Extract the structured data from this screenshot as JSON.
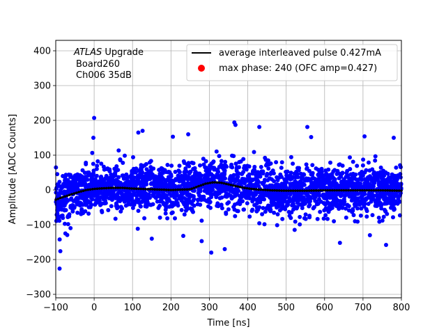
{
  "chart_data": {
    "type": "scatter",
    "xlabel": "Time [ns]",
    "ylabel": "Amplitude [ADC Counts]",
    "xlim": [
      -100,
      800
    ],
    "ylim": [
      -310,
      430
    ],
    "grid": true,
    "x_ticks": [
      -100,
      0,
      100,
      200,
      300,
      400,
      500,
      600,
      700,
      800
    ],
    "y_ticks": [
      -300,
      -200,
      -100,
      0,
      100,
      200,
      300,
      400
    ],
    "annotation": {
      "line1_italic": "ATLAS",
      "line1_rest": " Upgrade",
      "line2": "Board260",
      "line3": "Ch006 35dB"
    },
    "legend": {
      "position": "top-right",
      "entries": [
        {
          "label": "average interleaved pulse 0.427mA",
          "color": "#000000",
          "marker": "line"
        },
        {
          "label": "max phase: 240 (OFC amp=0.427)",
          "color": "#ff0000",
          "marker": "dot"
        }
      ]
    },
    "series": [
      {
        "role": "samples",
        "color": "#0000ff",
        "marker": "dot",
        "x_range": [
          -100,
          800
        ],
        "outliers": [
          {
            "x": -90,
            "y": -226
          },
          {
            "x": -88,
            "y": -176
          },
          {
            "x": 0,
            "y": 207
          },
          {
            "x": -2,
            "y": 150
          },
          {
            "x": 365,
            "y": 194
          },
          {
            "x": 368,
            "y": 187
          },
          {
            "x": 430,
            "y": 181
          },
          {
            "x": 555,
            "y": 181
          },
          {
            "x": 126,
            "y": 170
          },
          {
            "x": 115,
            "y": 165
          },
          {
            "x": 305,
            "y": -180
          },
          {
            "x": 640,
            "y": -152
          },
          {
            "x": 760,
            "y": -158
          },
          {
            "x": 718,
            "y": -130
          },
          {
            "x": 340,
            "y": -170
          },
          {
            "x": 232,
            "y": -132
          },
          {
            "x": 280,
            "y": -147
          },
          {
            "x": 704,
            "y": 154
          },
          {
            "x": 780,
            "y": 150
          },
          {
            "x": 565,
            "y": 152
          },
          {
            "x": 245,
            "y": 160
          },
          {
            "x": 205,
            "y": 153
          },
          {
            "x": -75,
            "y": -125
          },
          {
            "x": 150,
            "y": -140
          }
        ]
      },
      {
        "role": "average",
        "name": "average interleaved pulse 0.427mA",
        "color": "#000000",
        "x": [
          -100,
          -80,
          -60,
          -40,
          -20,
          0,
          25,
          50,
          75,
          100,
          125,
          150,
          175,
          200,
          225,
          250,
          270,
          290,
          310,
          330,
          350,
          370,
          390,
          410,
          430,
          460,
          500,
          550,
          600,
          650,
          700,
          750,
          800
        ],
        "y": [
          -28,
          -20,
          -13,
          -6,
          0,
          3,
          5,
          6,
          6,
          4,
          3,
          2,
          1,
          0,
          1,
          2,
          10,
          18,
          22,
          21,
          16,
          11,
          6,
          3,
          1,
          -1,
          -2,
          -2,
          -1,
          -1,
          -1,
          -1,
          -2
        ]
      }
    ]
  }
}
